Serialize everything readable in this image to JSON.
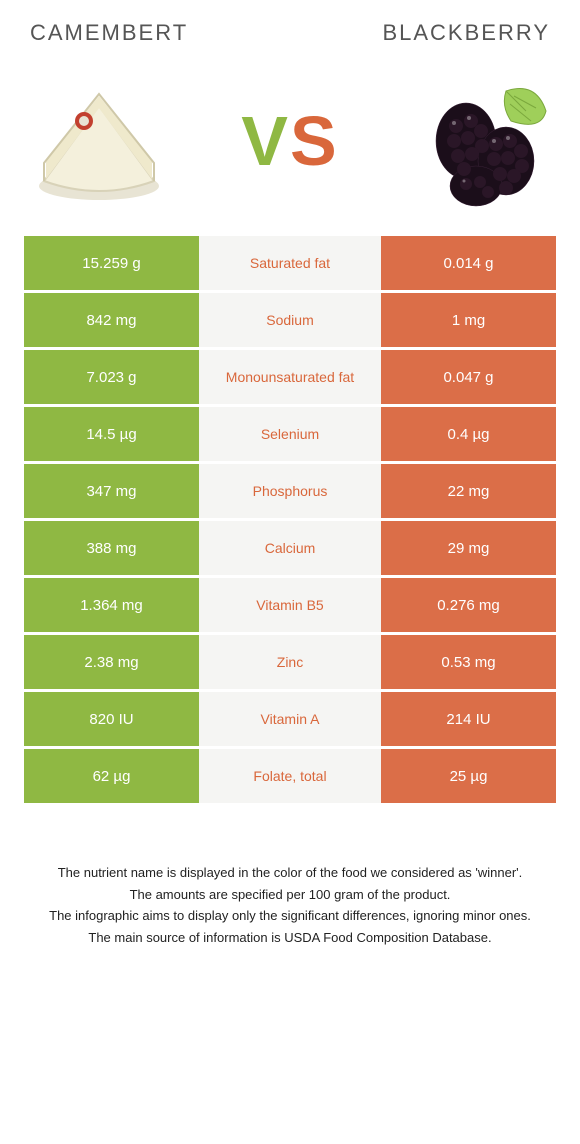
{
  "header": {
    "food_a": "CAMEMBERT",
    "food_b": "BLACKBERRY",
    "vs_v": "V",
    "vs_s": "S"
  },
  "colors": {
    "left_bg": "#8fb843",
    "right_bg": "#db6e48",
    "mid_bg": "#f5f5f3",
    "mid_text_left": "#d9673b",
    "mid_text_right": "#8fb843",
    "cell_text": "#ffffff"
  },
  "rows": [
    {
      "left": "15.259 g",
      "label": "Saturated fat",
      "right": "0.014 g",
      "winner": "left"
    },
    {
      "left": "842 mg",
      "label": "Sodium",
      "right": "1 mg",
      "winner": "left"
    },
    {
      "left": "7.023 g",
      "label": "Monounsaturated fat",
      "right": "0.047 g",
      "winner": "left"
    },
    {
      "left": "14.5 µg",
      "label": "Selenium",
      "right": "0.4 µg",
      "winner": "left"
    },
    {
      "left": "347 mg",
      "label": "Phosphorus",
      "right": "22 mg",
      "winner": "left"
    },
    {
      "left": "388 mg",
      "label": "Calcium",
      "right": "29 mg",
      "winner": "left"
    },
    {
      "left": "1.364 mg",
      "label": "Vitamin B5",
      "right": "0.276 mg",
      "winner": "left"
    },
    {
      "left": "2.38 mg",
      "label": "Zinc",
      "right": "0.53 mg",
      "winner": "left"
    },
    {
      "left": "820 IU",
      "label": "Vitamin A",
      "right": "214 IU",
      "winner": "left"
    },
    {
      "left": "62 µg",
      "label": "Folate, total",
      "right": "25 µg",
      "winner": "left"
    }
  ],
  "footnotes": [
    "The nutrient name is displayed in the color of the food we considered as 'winner'.",
    "The amounts are specified per 100 gram of the product.",
    "The infographic aims to display only the significant differences, ignoring minor ones.",
    "The main source of information is USDA Food Composition Database."
  ]
}
